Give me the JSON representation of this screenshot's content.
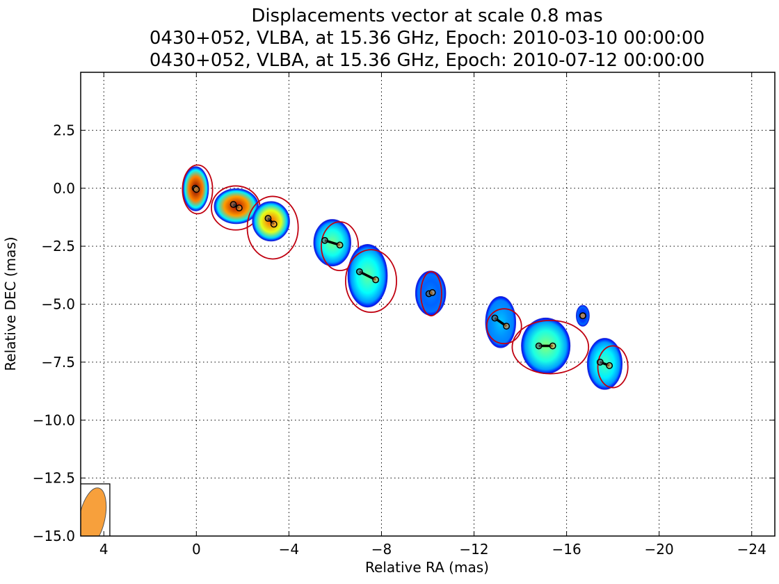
{
  "chart_data": {
    "type": "scatter",
    "title_lines": [
      "Displacements vector at scale 0.8 mas",
      "0430+052, VLBA, at 15.36 GHz, Epoch: 2010-03-10 00:00:00",
      "0430+052, VLBA, at 15.36 GHz, Epoch: 2010-07-12 00:00:00"
    ],
    "xlabel": "Relative RA (mas)",
    "ylabel": "Relative DEC (mas)",
    "xlim": [
      5,
      -25
    ],
    "ylim": [
      -15,
      5
    ],
    "x_ticks": [
      4,
      0,
      -4,
      -8,
      -12,
      -16,
      -20,
      -24
    ],
    "x_tick_labels": [
      "4",
      "0",
      "−4",
      "−8",
      "−12",
      "−16",
      "−20",
      "−24"
    ],
    "y_ticks": [
      2.5,
      0,
      -2.5,
      -5,
      -7.5,
      -10,
      -12.5,
      -15
    ],
    "y_tick_labels": [
      "2.5",
      "0.0",
      "−2.5",
      "−5.0",
      "−7.5",
      "−10.0",
      "−12.5",
      "−15.0"
    ],
    "grid": true,
    "colors": {
      "contour": "#c00010",
      "vector": "#000000",
      "beam_fill": "#f7a03c"
    },
    "beam": {
      "x": 4.5,
      "y": -14.2,
      "major": 1.3,
      "minor": 0.55,
      "pa_deg": 12
    },
    "components": [
      {
        "x1": 0.05,
        "y1": 0.0,
        "x2": 0.0,
        "y2": -0.05,
        "rx": 0.55,
        "ry": 0.95,
        "flux": 1.0,
        "c2x": -0.05,
        "c2y": -0.05,
        "c2rx": 0.65,
        "c2ry": 1.05
      },
      {
        "x1": -1.6,
        "y1": -0.7,
        "x2": -1.85,
        "y2": -0.85,
        "rx": 0.95,
        "ry": 0.75,
        "flux": 0.95,
        "c2x": -1.7,
        "c2y": -0.85,
        "c2rx": 1.05,
        "c2ry": 0.95
      },
      {
        "x1": -3.1,
        "y1": -1.3,
        "x2": -3.35,
        "y2": -1.55,
        "rx": 0.8,
        "ry": 0.85,
        "flux": 0.75,
        "c2x": -3.3,
        "c2y": -1.7,
        "c2rx": 1.1,
        "c2ry": 1.35
      },
      {
        "x1": -5.55,
        "y1": -2.25,
        "x2": -6.2,
        "y2": -2.45,
        "rx": 0.8,
        "ry": 1.0,
        "flux": 0.4,
        "c2x": -6.2,
        "c2y": -2.5,
        "c2rx": 0.8,
        "c2ry": 1.05
      },
      {
        "x1": -7.05,
        "y1": -3.6,
        "x2": -7.75,
        "y2": -3.95,
        "rx": 0.85,
        "ry": 1.35,
        "flux": 0.38,
        "c2x": -7.55,
        "c2y": -4.0,
        "c2rx": 1.1,
        "c2ry": 1.35
      },
      {
        "x1": -10.05,
        "y1": -4.55,
        "x2": -10.2,
        "y2": -4.5,
        "rx": 0.65,
        "ry": 0.95,
        "flux": 0.12,
        "c2x": -10.15,
        "c2y": -4.55,
        "c2rx": 0.45,
        "c2ry": 0.95
      },
      {
        "x1": -12.9,
        "y1": -5.6,
        "x2": -13.4,
        "y2": -5.95,
        "rx": 0.65,
        "ry": 1.1,
        "flux": 0.2,
        "c2x": -13.3,
        "c2y": -5.95,
        "c2rx": 0.75,
        "c2ry": 0.75
      },
      {
        "x1": -14.8,
        "y1": -6.8,
        "x2": -15.4,
        "y2": -6.8,
        "rx": 1.05,
        "ry": 1.2,
        "flux": 0.42,
        "c2x": -15.3,
        "c2y": -6.85,
        "c2rx": 1.65,
        "c2ry": 1.15
      },
      {
        "x1": -16.7,
        "y1": -5.5,
        "x2": -16.7,
        "y2": -5.5,
        "rx": 0.28,
        "ry": 0.45,
        "flux": 0.05,
        "c2x": 0,
        "c2y": 0,
        "c2rx": 0,
        "c2ry": 0
      },
      {
        "x1": -17.45,
        "y1": -7.5,
        "x2": -17.85,
        "y2": -7.65,
        "rx": 0.75,
        "ry": 1.1,
        "flux": 0.35,
        "c2x": -18.0,
        "c2y": -7.7,
        "c2rx": 0.65,
        "c2ry": 0.9
      }
    ]
  }
}
